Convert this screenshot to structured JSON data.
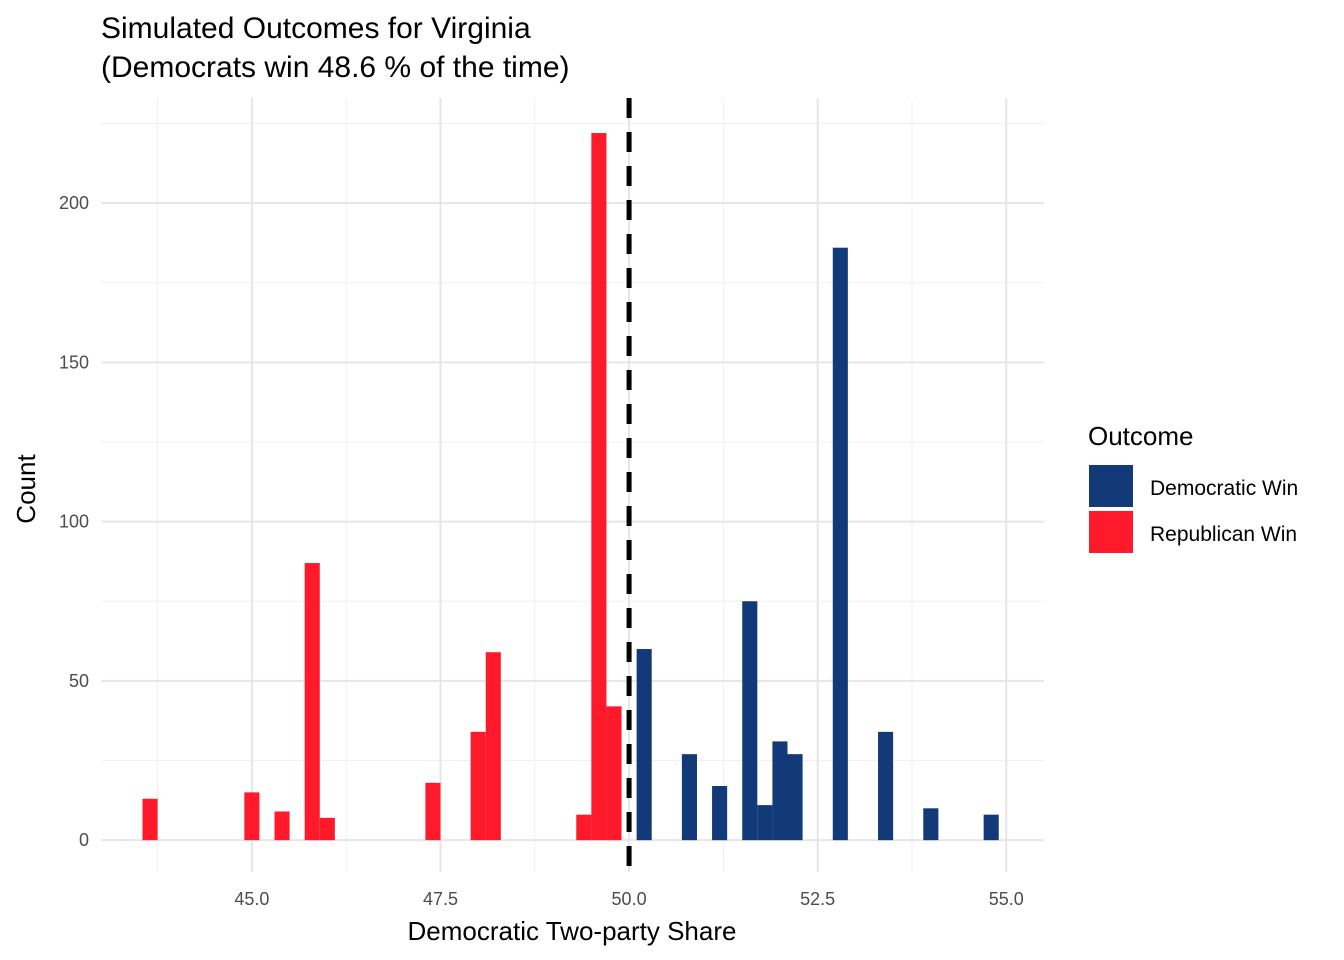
{
  "chart_data": {
    "type": "bar",
    "title_line1": "Simulated Outcomes for Virginia",
    "title_line2": "(Democrats win 48.6 % of the time)",
    "xlabel": "Democratic Two-party Share",
    "ylabel": "Count",
    "xlim": [
      43.0,
      55.5
    ],
    "ylim": [
      -10,
      233
    ],
    "x_ticks": [
      45.0,
      47.5,
      50.0,
      52.5,
      55.0
    ],
    "x_tick_labels": [
      "45.0",
      "47.5",
      "50.0",
      "52.5",
      "55.0"
    ],
    "y_ticks": [
      0,
      50,
      100,
      150,
      200
    ],
    "y_tick_labels": [
      "0",
      "50",
      "100",
      "150",
      "200"
    ],
    "grid": true,
    "bin_width": 0.2,
    "threshold": 50.0,
    "legend": {
      "title": "Outcome",
      "position": "right",
      "entries": [
        {
          "label": "Democratic Win",
          "color": "#123A78"
        },
        {
          "label": "Republican Win",
          "color": "#FF1A2B"
        }
      ]
    },
    "series": [
      {
        "name": "Republican Win",
        "color": "#FF1A2B",
        "bars": [
          {
            "x": 43.65,
            "value": 13
          },
          {
            "x": 45.0,
            "value": 15
          },
          {
            "x": 45.4,
            "value": 9
          },
          {
            "x": 45.8,
            "value": 87
          },
          {
            "x": 46.0,
            "value": 7
          },
          {
            "x": 47.4,
            "value": 18
          },
          {
            "x": 48.0,
            "value": 34
          },
          {
            "x": 48.2,
            "value": 59
          },
          {
            "x": 49.4,
            "value": 8
          },
          {
            "x": 49.6,
            "value": 222
          },
          {
            "x": 49.8,
            "value": 42
          }
        ]
      },
      {
        "name": "Democratic Win",
        "color": "#123A78",
        "bars": [
          {
            "x": 50.2,
            "value": 60
          },
          {
            "x": 50.8,
            "value": 27
          },
          {
            "x": 51.2,
            "value": 17
          },
          {
            "x": 51.6,
            "value": 75
          },
          {
            "x": 51.8,
            "value": 11
          },
          {
            "x": 52.0,
            "value": 31
          },
          {
            "x": 52.2,
            "value": 27
          },
          {
            "x": 52.8,
            "value": 186
          },
          {
            "x": 53.4,
            "value": 34
          },
          {
            "x": 54.0,
            "value": 10
          },
          {
            "x": 54.8,
            "value": 8
          }
        ]
      }
    ]
  }
}
